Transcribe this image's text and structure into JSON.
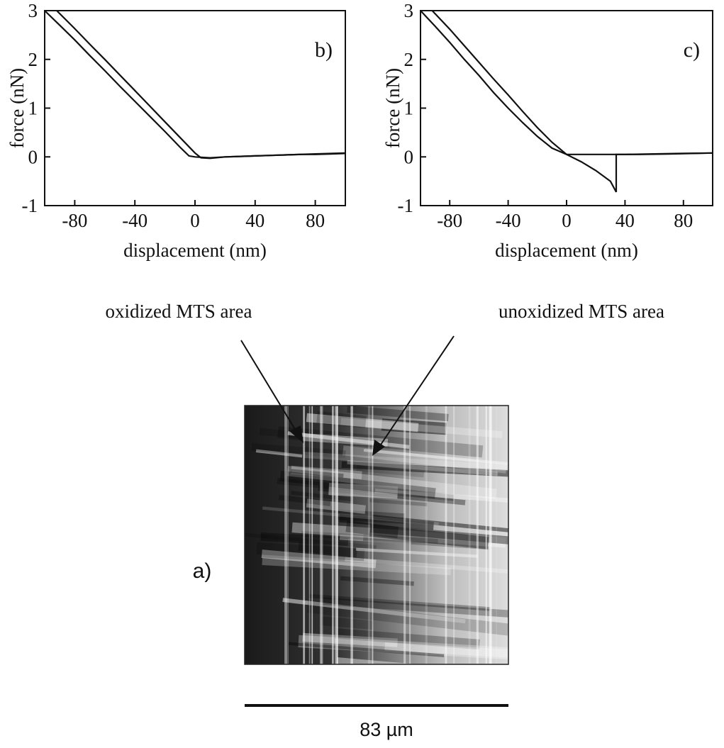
{
  "chart_data": [
    {
      "type": "line",
      "panel_label": "b)",
      "xlabel": "displacement (nm)",
      "ylabel": "force (nN)",
      "xlim": [
        -100,
        100
      ],
      "ylim": [
        -1,
        3
      ],
      "xticks": [
        -80,
        -40,
        0,
        40,
        80
      ],
      "yticks": [
        -1,
        0,
        1,
        2,
        3
      ],
      "series": [
        {
          "color": "#111111",
          "x": [
            -100,
            -90,
            -80,
            -70,
            -60,
            -50,
            -40,
            -30,
            -20,
            -10,
            -4,
            0,
            10,
            20,
            30,
            40,
            50,
            60,
            70,
            80,
            90,
            100
          ],
          "values": [
            3.0,
            2.7,
            2.4,
            2.08,
            1.77,
            1.45,
            1.14,
            0.83,
            0.52,
            0.2,
            0.02,
            0.0,
            -0.02,
            0.0,
            0.01,
            0.02,
            0.03,
            0.04,
            0.05,
            0.05,
            0.06,
            0.07
          ]
        },
        {
          "color": "#111111",
          "x": [
            -92,
            -80,
            -70,
            -60,
            -50,
            -40,
            -30,
            -20,
            -10,
            0,
            4,
            10,
            20,
            40,
            60,
            80,
            100
          ],
          "values": [
            3.0,
            2.63,
            2.31,
            2.0,
            1.68,
            1.36,
            1.04,
            0.72,
            0.4,
            0.08,
            -0.02,
            -0.03,
            0.0,
            0.02,
            0.04,
            0.06,
            0.08
          ]
        }
      ]
    },
    {
      "type": "line",
      "panel_label": "c)",
      "xlabel": "displacement (nm)",
      "ylabel": "force (nN)",
      "xlim": [
        -100,
        100
      ],
      "ylim": [
        -1,
        3
      ],
      "xticks": [
        -80,
        -40,
        0,
        40,
        80
      ],
      "yticks": [
        -1,
        0,
        1,
        2,
        3
      ],
      "series": [
        {
          "color": "#111111",
          "x": [
            -100,
            -90,
            -80,
            -70,
            -60,
            -50,
            -40,
            -30,
            -20,
            -10,
            0,
            20,
            40,
            60,
            80,
            100
          ],
          "values": [
            3.0,
            2.68,
            2.35,
            2.0,
            1.67,
            1.32,
            1.0,
            0.7,
            0.42,
            0.18,
            0.05,
            0.05,
            0.05,
            0.06,
            0.07,
            0.08
          ]
        },
        {
          "color": "#111111",
          "x": [
            -92,
            -80,
            -70,
            -60,
            -50,
            -40,
            -30,
            -20,
            -10,
            0,
            10,
            20,
            30,
            34,
            34,
            50,
            70,
            100
          ],
          "values": [
            3.0,
            2.62,
            2.28,
            1.94,
            1.6,
            1.27,
            0.93,
            0.6,
            0.3,
            0.05,
            -0.1,
            -0.28,
            -0.5,
            -0.72,
            0.05,
            0.05,
            0.06,
            0.08
          ]
        }
      ]
    }
  ],
  "image_panel": {
    "label": "a)",
    "annotations": [
      "oxidized MTS area",
      "unoxidized MTS area"
    ],
    "scale_bar": "83 µm"
  }
}
